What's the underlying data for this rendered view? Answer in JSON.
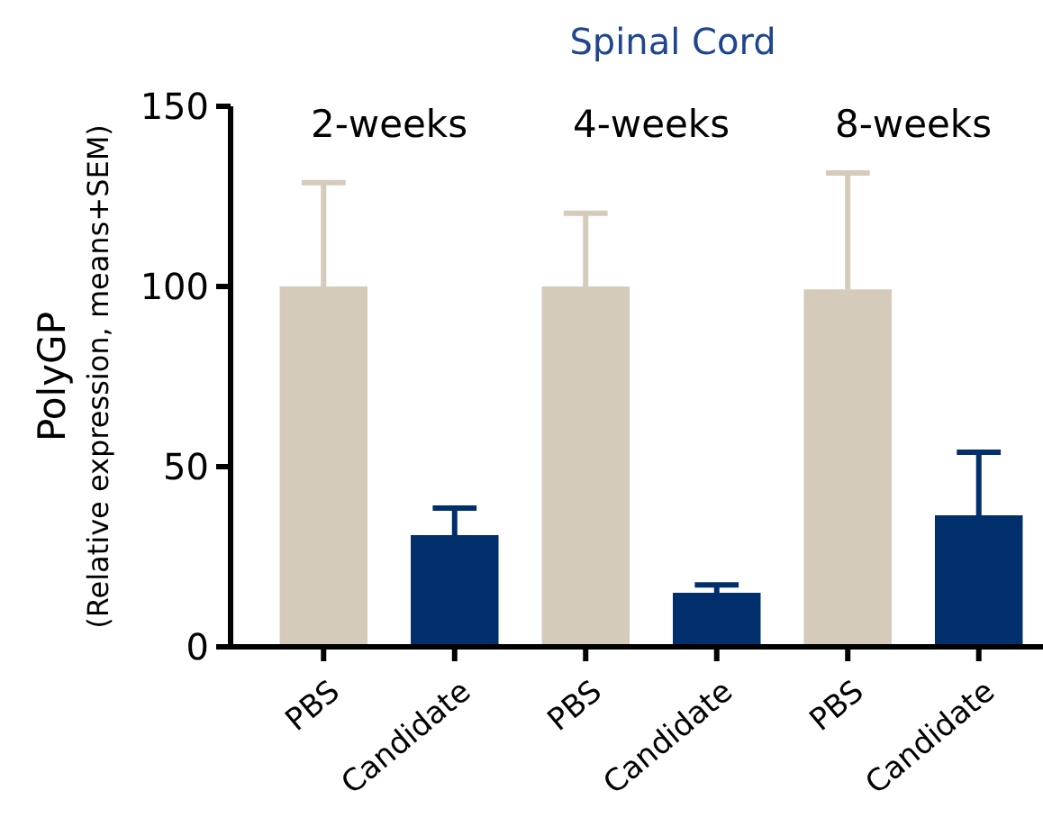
{
  "chart_data": {
    "type": "bar",
    "title": "Spinal Cord",
    "ylabel": "PolyGP\n(Relative expression, means+SEM)",
    "categories": [
      "PBS",
      "Candidate",
      "PBS",
      "Candidate",
      "PBS",
      "Candidate"
    ],
    "values": [
      100,
      31,
      100,
      15,
      99.2,
      36.5
    ],
    "colors": [
      "#d4cbbb",
      "#002f6c",
      "#d4cbbb",
      "#002f6c",
      "#d4cbbb",
      "#002f6c"
    ],
    "errors": [
      [
        100,
        128.8
      ],
      [
        31,
        38.5
      ],
      [
        100,
        120.3
      ],
      [
        15,
        17.2
      ],
      [
        99.2,
        131.5
      ],
      [
        36.5,
        54
      ]
    ],
    "ylim": [
      0,
      150
    ],
    "yticks": [
      0,
      50,
      100,
      150
    ],
    "annotations": [
      "2-weeks",
      "4-weeks",
      "8-weeks"
    ]
  }
}
